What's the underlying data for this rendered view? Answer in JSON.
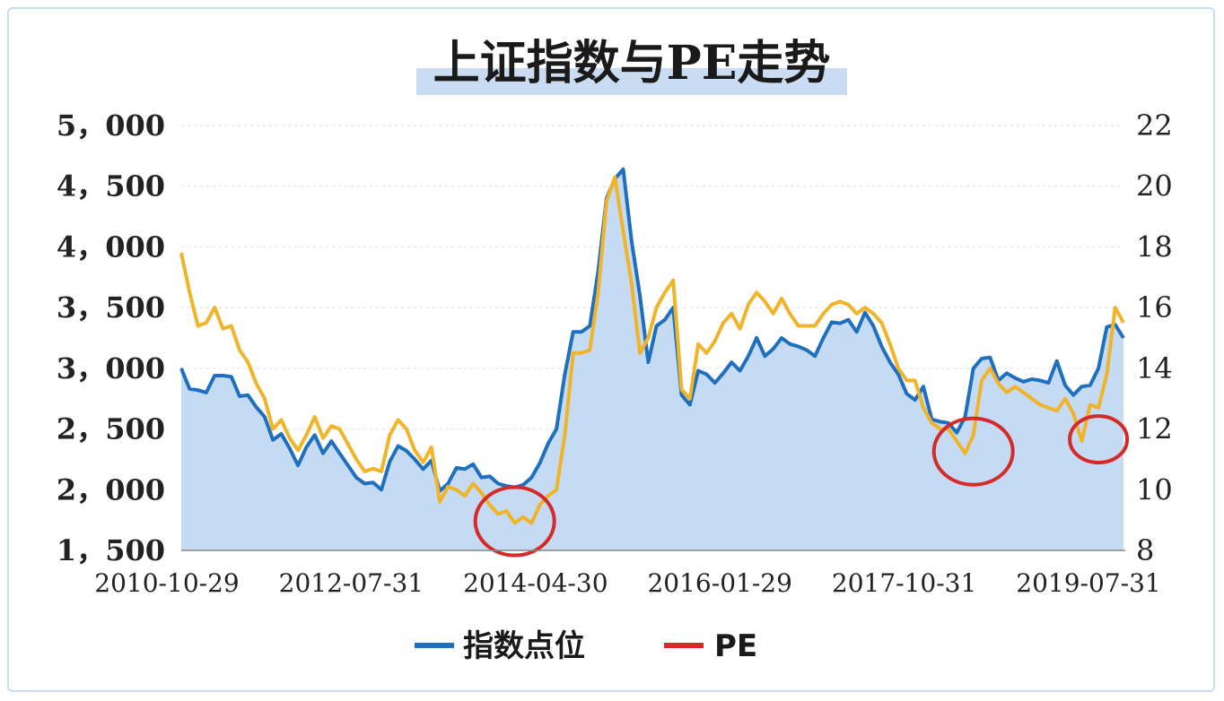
{
  "chart_data": {
    "type": "line",
    "title": "上证指数与PE走势",
    "x_tick_labels": [
      "2010-10-29",
      "2012-07-31",
      "2014-04-30",
      "2016-01-29",
      "2017-10-31",
      "2019-07-31"
    ],
    "left_axis": {
      "range": [
        1500,
        5000
      ],
      "tick_values": [
        1500,
        2000,
        2500,
        3000,
        3500,
        4000,
        4500,
        5000
      ],
      "tick_labels": [
        "1，500",
        "2，000",
        "2，500",
        "3，000",
        "3，500",
        "4，000",
        "4，500",
        "5，000"
      ]
    },
    "right_axis": {
      "range": [
        8,
        22
      ],
      "tick_values": [
        8,
        10,
        12,
        14,
        16,
        18,
        20,
        22
      ],
      "tick_labels": [
        "8",
        "10",
        "12",
        "14",
        "16",
        "18",
        "20",
        "22"
      ]
    },
    "series": [
      {
        "name": "指数点位",
        "axis": "left",
        "color": "#1f6fbf",
        "fill": "#c5daf3",
        "values": [
          3000,
          2830,
          2820,
          2800,
          2940,
          2940,
          2930,
          2770,
          2780,
          2680,
          2600,
          2410,
          2460,
          2340,
          2200,
          2350,
          2450,
          2300,
          2400,
          2300,
          2200,
          2100,
          2050,
          2060,
          2000,
          2230,
          2360,
          2320,
          2250,
          2170,
          2240,
          1990,
          2050,
          2180,
          2170,
          2210,
          2100,
          2110,
          2050,
          2030,
          2020,
          2040,
          2100,
          2220,
          2380,
          2500,
          2950,
          3300,
          3300,
          3350,
          3800,
          4400,
          4560,
          4640,
          4050,
          3600,
          3050,
          3350,
          3400,
          3500,
          2780,
          2700,
          2980,
          2950,
          2880,
          2960,
          3050,
          2980,
          3100,
          3250,
          3100,
          3160,
          3250,
          3200,
          3180,
          3150,
          3100,
          3250,
          3380,
          3370,
          3400,
          3300,
          3460,
          3350,
          3180,
          3050,
          2950,
          2790,
          2740,
          2850,
          2580,
          2560,
          2550,
          2470,
          2600,
          3000,
          3080,
          3090,
          2900,
          2960,
          2920,
          2890,
          2910,
          2900,
          2880,
          3060,
          2860,
          2780,
          2850,
          2860,
          3000,
          3340,
          3360,
          3250
        ]
      },
      {
        "name": "PE",
        "axis": "right",
        "color": "#f0b429",
        "legend_color": "#d42a2a",
        "values": [
          17.8,
          16.5,
          15.4,
          15.5,
          16,
          15.3,
          15.4,
          14.6,
          14.2,
          13.5,
          13,
          12,
          12.3,
          11.7,
          11.3,
          11.8,
          12.4,
          11.7,
          12.1,
          12,
          11.5,
          11,
          10.6,
          10.7,
          10.6,
          11.8,
          12.3,
          12,
          11.3,
          10.9,
          11.4,
          9.6,
          10.1,
          10,
          9.8,
          10.2,
          9.9,
          9.5,
          9.2,
          9.3,
          8.9,
          9.1,
          8.9,
          9.5,
          9.8,
          10,
          11.8,
          14.5,
          14.5,
          14.6,
          16.5,
          19.5,
          20.3,
          18.5,
          16.8,
          14.5,
          15,
          16,
          16.5,
          16.9,
          13.3,
          13,
          14.8,
          14.5,
          14.9,
          15.5,
          15.8,
          15.3,
          16.1,
          16.5,
          16.2,
          15.8,
          16.3,
          15.8,
          15.4,
          15.4,
          15.4,
          15.8,
          16.1,
          16.2,
          16.1,
          15.8,
          16,
          15.8,
          15.5,
          14.8,
          14,
          13.6,
          13.6,
          12.7,
          12.2,
          12,
          12,
          11.6,
          11.2,
          11.8,
          13.6,
          14,
          13.5,
          13.2,
          13.4,
          13.2,
          13,
          12.8,
          12.7,
          12.6,
          13,
          12.5,
          11.6,
          12.8,
          12.7,
          13.8,
          16,
          15.5
        ]
      }
    ],
    "legend_placement": "bottom-center",
    "annotations": [
      "red circle around 2014 low",
      "red circle around 2018 low",
      "red circle around 2019 low"
    ]
  }
}
